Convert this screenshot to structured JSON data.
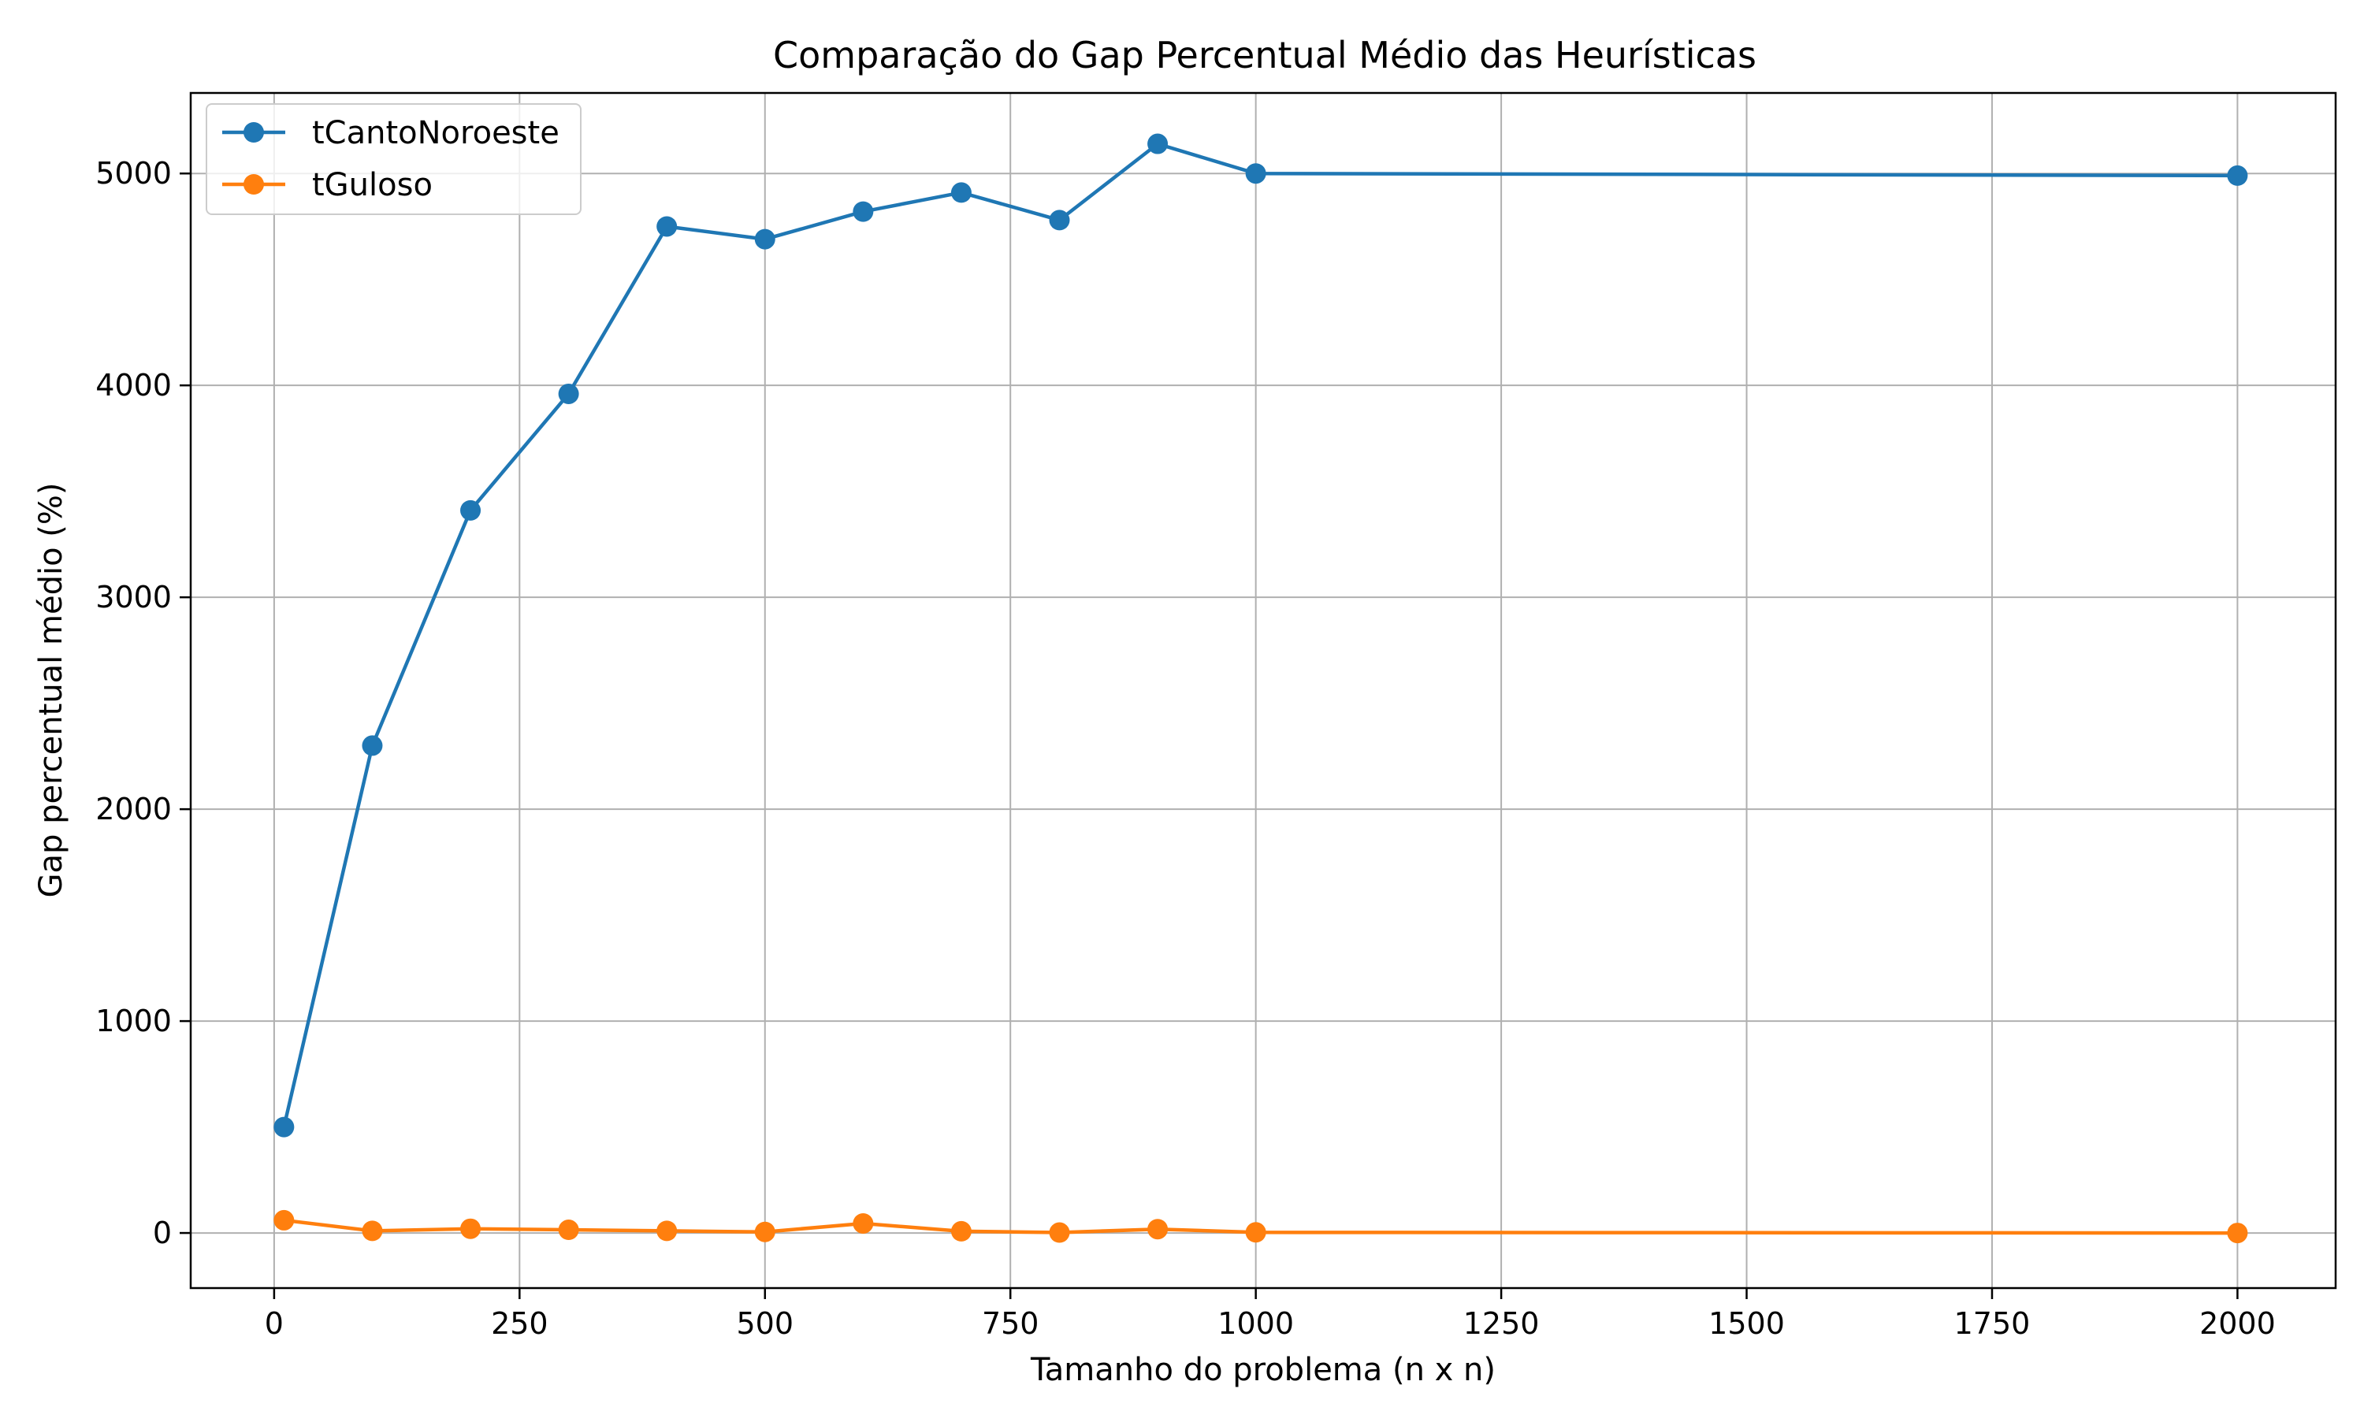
{
  "chart_data": {
    "type": "line",
    "title": "Comparação do Gap Percentual Médio das Heurísticas",
    "xlabel": "Tamanho do problema (n x n)",
    "ylabel": "Gap percentual médio (%)",
    "xlim": [
      -85,
      2100
    ],
    "ylim": [
      -260,
      5380
    ],
    "xticks": [
      0,
      250,
      500,
      750,
      1000,
      1250,
      1500,
      1750,
      2000
    ],
    "yticks": [
      0,
      1000,
      2000,
      3000,
      4000,
      5000
    ],
    "grid": true,
    "legend_position": "top-left",
    "x": [
      10,
      100,
      200,
      300,
      400,
      500,
      600,
      700,
      800,
      900,
      1000,
      2000
    ],
    "series": [
      {
        "name": "tCantoNoroeste",
        "color": "#1f77b4",
        "marker": "circle",
        "values": [
          500,
          2300,
          3410,
          3960,
          4750,
          4690,
          4820,
          4910,
          4780,
          5140,
          5000,
          4990
        ]
      },
      {
        "name": "tGuloso",
        "color": "#ff7f0e",
        "marker": "circle",
        "values": [
          60,
          10,
          20,
          15,
          10,
          5,
          45,
          8,
          2,
          18,
          3,
          0
        ]
      }
    ]
  }
}
